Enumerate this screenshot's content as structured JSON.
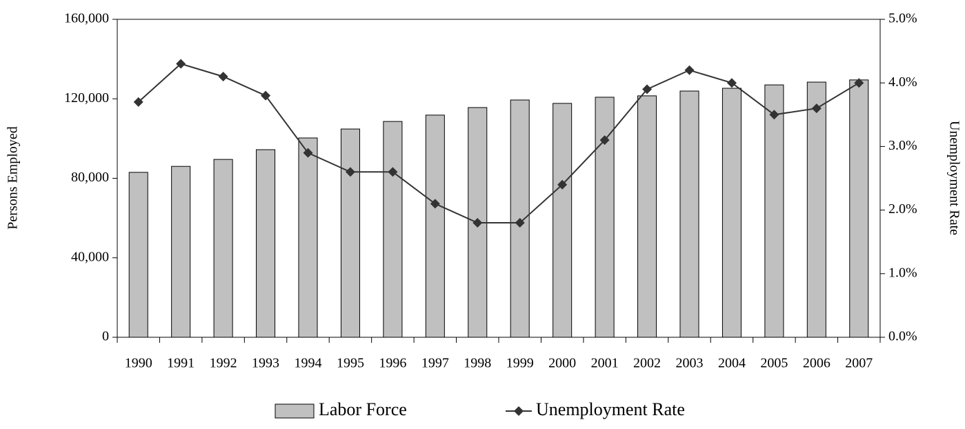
{
  "chart_data": {
    "type": "bar",
    "y_label": "Persons Employed",
    "y2_label": "Unemployment Rate",
    "categories": [
      "1990",
      "1991",
      "1992",
      "1993",
      "1994",
      "1995",
      "1996",
      "1997",
      "1998",
      "1999",
      "2000",
      "2001",
      "2002",
      "2003",
      "2004",
      "2005",
      "2006",
      "2007"
    ],
    "series": [
      {
        "name": "Labor Force",
        "type": "bar",
        "color": "#c0c0c0",
        "axis": "y",
        "values": [
          83000,
          86000,
          89500,
          94400,
          100300,
          104800,
          108600,
          111800,
          115600,
          119400,
          117700,
          120800,
          121500,
          123900,
          125300,
          127000,
          128400,
          129500
        ]
      },
      {
        "name": "Unemployment Rate",
        "type": "line",
        "color": "#333333",
        "axis": "y2",
        "values": [
          3.7,
          4.3,
          4.1,
          3.8,
          2.9,
          2.6,
          2.6,
          2.1,
          1.8,
          1.8,
          2.4,
          3.1,
          3.9,
          4.2,
          4.0,
          3.5,
          3.6,
          4.0
        ]
      }
    ],
    "ylim": [
      0,
      160000
    ],
    "yticks": [
      0,
      {
        "value": 40000,
        "label": "40,000"
      },
      {
        "value": 80000,
        "label": "80,000"
      },
      {
        "value": 120000,
        "label": "120,000"
      },
      {
        "value": 160000,
        "label": "160,000"
      }
    ],
    "y2lim": [
      0,
      5
    ],
    "y2ticks": [
      {
        "value": 0,
        "label": "0.0%"
      },
      {
        "value": 1,
        "label": "1.0%"
      },
      {
        "value": 2,
        "label": "2.0%"
      },
      {
        "value": 3,
        "label": "3.0%"
      },
      {
        "value": 4,
        "label": "4.0%"
      },
      {
        "value": 5,
        "label": "5.0%"
      }
    ],
    "grid": false
  }
}
